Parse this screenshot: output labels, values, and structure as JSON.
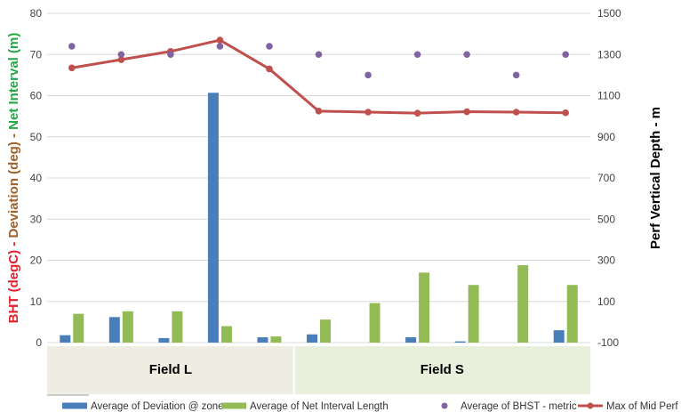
{
  "chart_data": {
    "type": "bar",
    "title": "",
    "groups": [
      {
        "label": "Field L",
        "count": 5,
        "color": "#efece1"
      },
      {
        "label": "Field S",
        "count": 6,
        "color": "#e8f0dc"
      }
    ],
    "y_left": {
      "label_parts": [
        {
          "text": "BHT (degC)",
          "color": "#e0202a"
        },
        {
          "text": " - ",
          "color": "#e0202a"
        },
        {
          "text": "Deviation (deg)",
          "color": "#a0622a"
        },
        {
          "text": " - ",
          "color": "#a0622a"
        },
        {
          "text": "Net Interval (m)",
          "color": "#22a845"
        }
      ],
      "min": 0,
      "max": 80,
      "step": 10,
      "ticks": [
        "0",
        "10",
        "20",
        "30",
        "40",
        "50",
        "60",
        "70",
        "80"
      ]
    },
    "y_right": {
      "label": "Perf Vertical Depth - m",
      "min": -100,
      "max": 1500,
      "step": 200,
      "ticks": [
        "-100",
        "100",
        "300",
        "500",
        "700",
        "900",
        "1100",
        "1300",
        "1500"
      ]
    },
    "series": [
      {
        "name": "Average of Deviation @ zone",
        "kind": "bar",
        "axis": "left",
        "color": "#4a7ebb",
        "values": [
          1.8,
          6.2,
          1.1,
          60.7,
          1.3,
          2.0,
          null,
          1.3,
          0.3,
          null,
          3.0
        ]
      },
      {
        "name": "Average of Net Interval Length",
        "kind": "bar",
        "axis": "left",
        "color": "#93bb55",
        "values": [
          7.0,
          7.6,
          7.6,
          4.0,
          1.5,
          5.6,
          9.6,
          17.0,
          14.0,
          18.8,
          14.0
        ]
      },
      {
        "name": "Average of BHST - metric",
        "kind": "scatter",
        "axis": "left",
        "color": "#8064a2",
        "values": [
          72,
          70,
          70,
          72,
          72,
          70,
          65,
          70,
          70,
          65,
          70
        ]
      },
      {
        "name": "Max of Mid Perf",
        "kind": "line",
        "axis": "right",
        "color": "#c0504d",
        "values": [
          1235,
          1275,
          1315,
          1370,
          1230,
          1025,
          1020,
          1015,
          1022,
          1020,
          1017
        ]
      }
    ],
    "grid": true,
    "legend_position": "bottom"
  }
}
